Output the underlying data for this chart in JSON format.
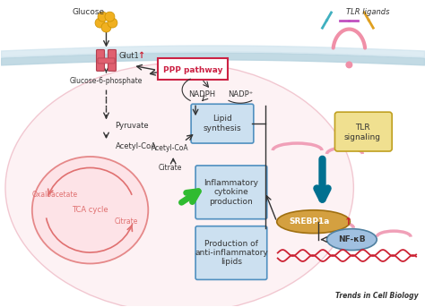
{
  "background_color": "#ffffff",
  "labels": {
    "glucose": "Glucose",
    "glut1": "Glut1",
    "g6p": "Glucose-6-phosphate",
    "pyruvate": "Pyruvate",
    "acetyl_coa_left": "Acetyl-CoA",
    "oxaloacetate": "Oxaloacetate",
    "citrate_tca": "Citrate",
    "tca_cycle": "TCA cycle",
    "ppp": "PPP pathway",
    "nadph": "NADPH",
    "nadp": "NADP⁺",
    "acetyl_coa_right": "Acetyl-CoA",
    "citrate_right": "Citrate",
    "lipid_synthesis": "Lipid\nsynthesis",
    "inflammatory": "Inflammatory\ncytokine\nproduction",
    "anti_inflammatory": "Production of\nanti-inflammatory\nlipids",
    "tlr_ligands": "TLR ligands",
    "tlr_signaling": "TLR\nsignaling",
    "srebp1a": "SREBP1a",
    "nf_kb": "NF-κB",
    "trends": "Trends in Cell Biology"
  },
  "colors": {
    "ppp_box_border": "#cc2244",
    "ppp_box_fill": "#ffffff",
    "ppp_text": "#cc2244",
    "lipid_box_fill": "#cce0f0",
    "lipid_box_border": "#5090c0",
    "inflammatory_box_fill": "#cce0f0",
    "inflammatory_box_border": "#5090c0",
    "anti_inflammatory_box_fill": "#cce0f0",
    "anti_inflammatory_box_border": "#5090c0",
    "tlr_signaling_box_fill": "#f0e090",
    "tlr_signaling_box_border": "#c0a020",
    "srebp1a_fill": "#d4a040",
    "nf_kb_fill": "#a0c0e0",
    "arrow_black": "#333333",
    "dna_red": "#cc2233",
    "text_dark": "#333333",
    "glucose_yellow": "#f0b020",
    "glut1_red": "#e06070",
    "tca_pink": "#e07070",
    "membrane_outer": "#b8d4e0",
    "membrane_inner": "#d0e4ee",
    "cell_fill": "#fce8ec",
    "cell_edge": "#e8a0b0",
    "tca_fill": "#fde0e4",
    "organelle_pink": "#f0a0b8",
    "green_arrow": "#30bb30",
    "teal_arrow": "#007090",
    "red_arrow_up": "#cc2233"
  }
}
